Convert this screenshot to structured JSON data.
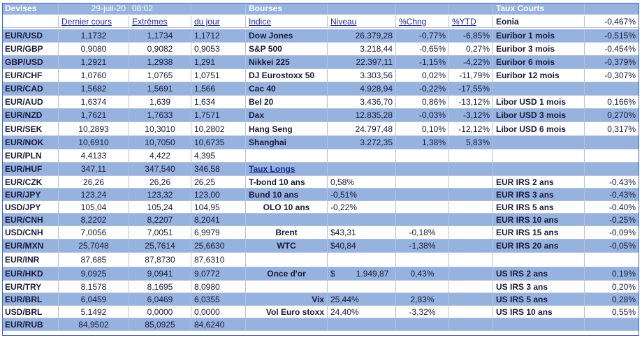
{
  "top": {
    "devises": "Devises",
    "date": "29-juil-20",
    "time": "08:02",
    "bourses": "Bourses",
    "taux_courts": "Taux Courts",
    "eonia_label": "Eonia",
    "eonia_value": "-0,467%"
  },
  "headers": {
    "dernier": "Dernier cours",
    "extremes": "Extrêmes",
    "du_jour": "du jour",
    "indice": "Indice",
    "niveau": "Niveau",
    "chng": "%Chng",
    "ytd": "%YTD"
  },
  "rows": [
    {
      "pair": "EUR/USD",
      "a": "1,1732",
      "b": "1,1734",
      "c": "1,1712",
      "mid": "Dow Jones",
      "niv": "26.379,28",
      "chg": "-0,77%",
      "ytd": "-6,85%",
      "rl": "Euribor 1 mois",
      "rv": "-0,515%"
    },
    {
      "pair": "EUR/GBP",
      "a": "0,9080",
      "b": "0,9082",
      "c": "0,9053",
      "mid": "S&P 500",
      "niv": "3.218,44",
      "chg": "-0,65%",
      "ytd": "0,27%",
      "rl": "Euribor 3 mois",
      "rv": "-0,454%"
    },
    {
      "pair": "GBP/USD",
      "a": "1,2921",
      "b": "1,2938",
      "c": "1,291",
      "mid": "Nikkei 225",
      "niv": "22.397,11",
      "chg": "-1,15%",
      "ytd": "-4,22%",
      "rl": "Euribor 6 mois",
      "rv": "-0,379%"
    },
    {
      "pair": "EUR/CHF",
      "a": "1,0760",
      "b": "1,0765",
      "c": "1,0751",
      "mid": "DJ Eurostoxx 50",
      "niv": "3.303,56",
      "chg": "0,02%",
      "ytd": "-11,79%",
      "rl": "Euribor 12 mois",
      "rv": "-0,307%"
    },
    {
      "pair": "EUR/CAD",
      "a": "1,5682",
      "b": "1,5691",
      "c": "1,566",
      "mid": "Cac 40",
      "niv": "4.928,94",
      "chg": "-0,22%",
      "ytd": "-17,55%",
      "rl": "",
      "rv": ""
    },
    {
      "pair": "EUR/AUD",
      "a": "1,6374",
      "b": "1,639",
      "c": "1,634",
      "mid": "Bel 20",
      "niv": "3.436,70",
      "chg": "0,86%",
      "ytd": "-13,12%",
      "rl": "Libor USD 1 mois",
      "rv": "0,166%"
    },
    {
      "pair": "EUR/NZD",
      "a": "1,7621",
      "b": "1,7633",
      "c": "1,7571",
      "mid": "Dax",
      "niv": "12.835,28",
      "chg": "-0,03%",
      "ytd": "-3,12%",
      "rl": "Libor USD 3 mois",
      "rv": "0,270%"
    },
    {
      "pair": "EUR/SEK",
      "a": "10,2893",
      "b": "10,3010",
      "c": "10,2802",
      "mid": "Hang Seng",
      "niv": "24.797,48",
      "chg": "0,10%",
      "ytd": "-12,12%",
      "rl": "Libor USD 6 mois",
      "rv": "0,317%"
    },
    {
      "pair": "EUR/NOK",
      "a": "10,6910",
      "b": "10,7050",
      "c": "10,6735",
      "mid": "Shanghai",
      "niv": "3.272,35",
      "chg": "1,38%",
      "ytd": "5,83%",
      "rl": "",
      "rv": ""
    },
    {
      "pair": "EUR/PLN",
      "a": "4,4133",
      "b": "4,422",
      "c": "4,395",
      "mid": "",
      "niv": "",
      "chg": "",
      "ytd": "",
      "rl": "",
      "rv": ""
    },
    {
      "pair": "EUR/HUF",
      "a": "347,11",
      "b": "347,540",
      "c": "346,58",
      "mid": "Taux Longs",
      "niv": "",
      "chg": "",
      "ytd": "",
      "rl": "",
      "rv": ""
    },
    {
      "pair": "EUR/CZK",
      "a": "26,26",
      "b": "26,26",
      "c": "26,25",
      "mid": "T-bond 10 ans",
      "niv": "0,58%",
      "chg": "",
      "ytd": "",
      "rl": "EUR IRS 2 ans",
      "rv": "-0,43%"
    },
    {
      "pair": "EUR/JPY",
      "a": "123,24",
      "b": "123,32",
      "c": "123,00",
      "mid": "Bund 10 ans",
      "niv": "-0,51%",
      "chg": "",
      "ytd": "",
      "rl": "EUR IRS 3 ans",
      "rv": "-0,43%"
    },
    {
      "pair": "USD/JPY",
      "a": "105,04",
      "b": "105,24",
      "c": "104,95",
      "mid": "OLO 10 ans",
      "niv": "-0,22%",
      "chg": "",
      "ytd": "",
      "rl": "EUR IRS 5 ans",
      "rv": "-0,40%"
    },
    {
      "pair": "EUR/CNH",
      "a": "8,2202",
      "b": "8,2207",
      "c": "8,2041",
      "mid": "",
      "niv": "",
      "chg": "",
      "ytd": "",
      "rl": "EUR IRS 10 ans",
      "rv": "-0,25%"
    },
    {
      "pair": "USD/CNH",
      "a": "7,0056",
      "b": "7,0051",
      "c": "6,9979",
      "mid": "Brent",
      "niv": "$43,31",
      "chg": "-0,18%",
      "ytd": "",
      "rl": "EUR IRS 15 ans",
      "rv": "-0,09%"
    },
    {
      "pair": "EUR/MXN",
      "a": "25,7048",
      "b": "25,7614",
      "c": "25,6630",
      "mid": "WTC",
      "niv": "$40,84",
      "chg": "-1,38%",
      "ytd": "",
      "rl": "EUR IRS 20 ans",
      "rv": "-0,05%"
    },
    {
      "pair": "EUR/INR",
      "a": "87,685",
      "b": "87,8730",
      "c": "87,6310",
      "mid": "",
      "niv": "",
      "chg": "",
      "ytd": "",
      "rl": "",
      "rv": ""
    },
    {
      "pair": "EUR/HKD",
      "a": "9,0925",
      "b": "9,0941",
      "c": "9,0772",
      "mid": "Once d'or",
      "niv": "$         1.949,87",
      "chg": "0,43%",
      "ytd": "",
      "rl": "US IRS 2 ans",
      "rv": "0,19%"
    },
    {
      "pair": "EUR/TRY",
      "a": "8,1578",
      "b": "8,1695",
      "c": "8,0980",
      "mid": "",
      "niv": "",
      "chg": "",
      "ytd": "",
      "rl": "US IRS 3 ans",
      "rv": "0,20%"
    },
    {
      "pair": "EUR/BRL",
      "a": "6,0459",
      "b": "6,0469",
      "c": "6,0355",
      "mid": "Vix",
      "niv": "25,44%",
      "chg": "2,83%",
      "ytd": "",
      "rl": "US IRS 5 ans",
      "rv": "0,28%"
    },
    {
      "pair": "USD/BRL",
      "a": "5,1492",
      "b": "0,0000",
      "c": "0,0000",
      "mid": "Vol Euro stoxx",
      "niv": "24,40%",
      "chg": "-3,32%",
      "ytd": "",
      "rl": "US IRS 10 ans",
      "rv": "0,55%"
    },
    {
      "pair": "EUR/RUB",
      "a": "84,9502",
      "b": "85,0925",
      "c": "84,6240",
      "mid": "",
      "niv": "",
      "chg": "",
      "ytd": "",
      "rl": "",
      "rv": ""
    }
  ]
}
